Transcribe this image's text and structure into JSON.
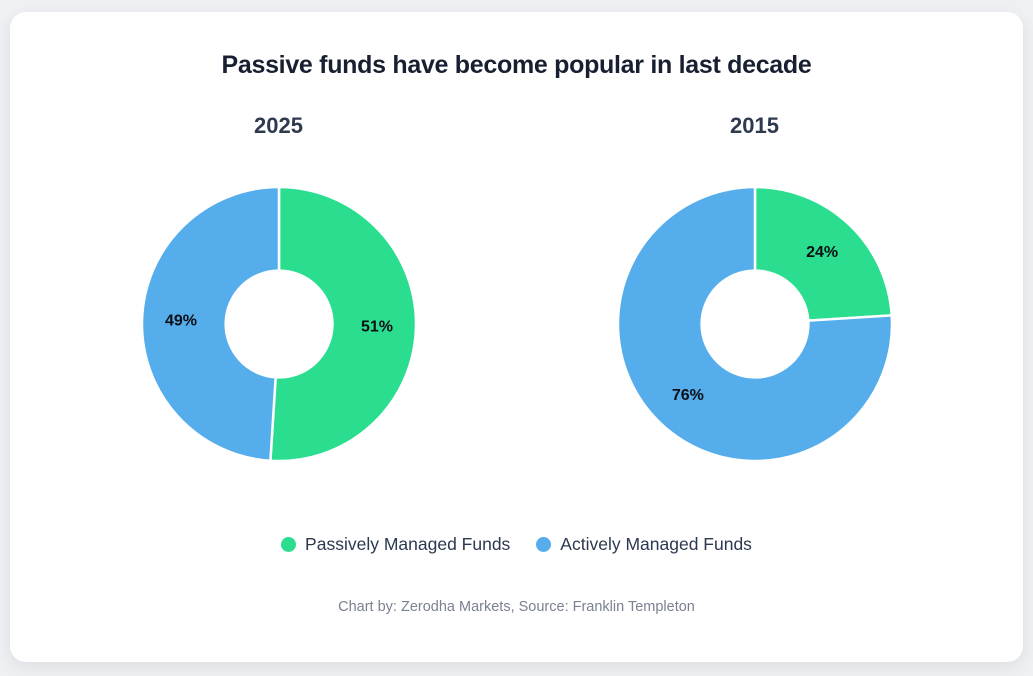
{
  "header": {
    "title": "Passive funds have become popular in last decade"
  },
  "chart_data": [
    {
      "type": "pie",
      "subtype": "donut",
      "title": "2025",
      "labels": [
        "Passively Managed Funds",
        "Actively Managed Funds"
      ],
      "values": [
        51,
        49
      ],
      "value_labels": [
        "51%",
        "49%"
      ],
      "colors": [
        "#2bde8f",
        "#55adeb"
      ],
      "start_angle_deg": 0,
      "direction": "clockwise",
      "inner_radius_ratio": 0.39,
      "separator_color": "#ffffff"
    },
    {
      "type": "pie",
      "subtype": "donut",
      "title": "2015",
      "labels": [
        "Passively Managed Funds",
        "Actively Managed Funds"
      ],
      "values": [
        24,
        76
      ],
      "value_labels": [
        "24%",
        "76%"
      ],
      "colors": [
        "#2bde8f",
        "#55adeb"
      ],
      "start_angle_deg": 0,
      "direction": "clockwise",
      "inner_radius_ratio": 0.39,
      "separator_color": "#ffffff"
    }
  ],
  "legend": {
    "items": [
      {
        "label": "Passively Managed Funds",
        "color": "#2bde8f",
        "icon": "circle-dot-icon"
      },
      {
        "label": "Actively Managed Funds",
        "color": "#55adeb",
        "icon": "circle-dot-icon"
      }
    ]
  },
  "footer": {
    "credit": "Chart by: Zerodha Markets, Source: Franklin Templeton"
  }
}
